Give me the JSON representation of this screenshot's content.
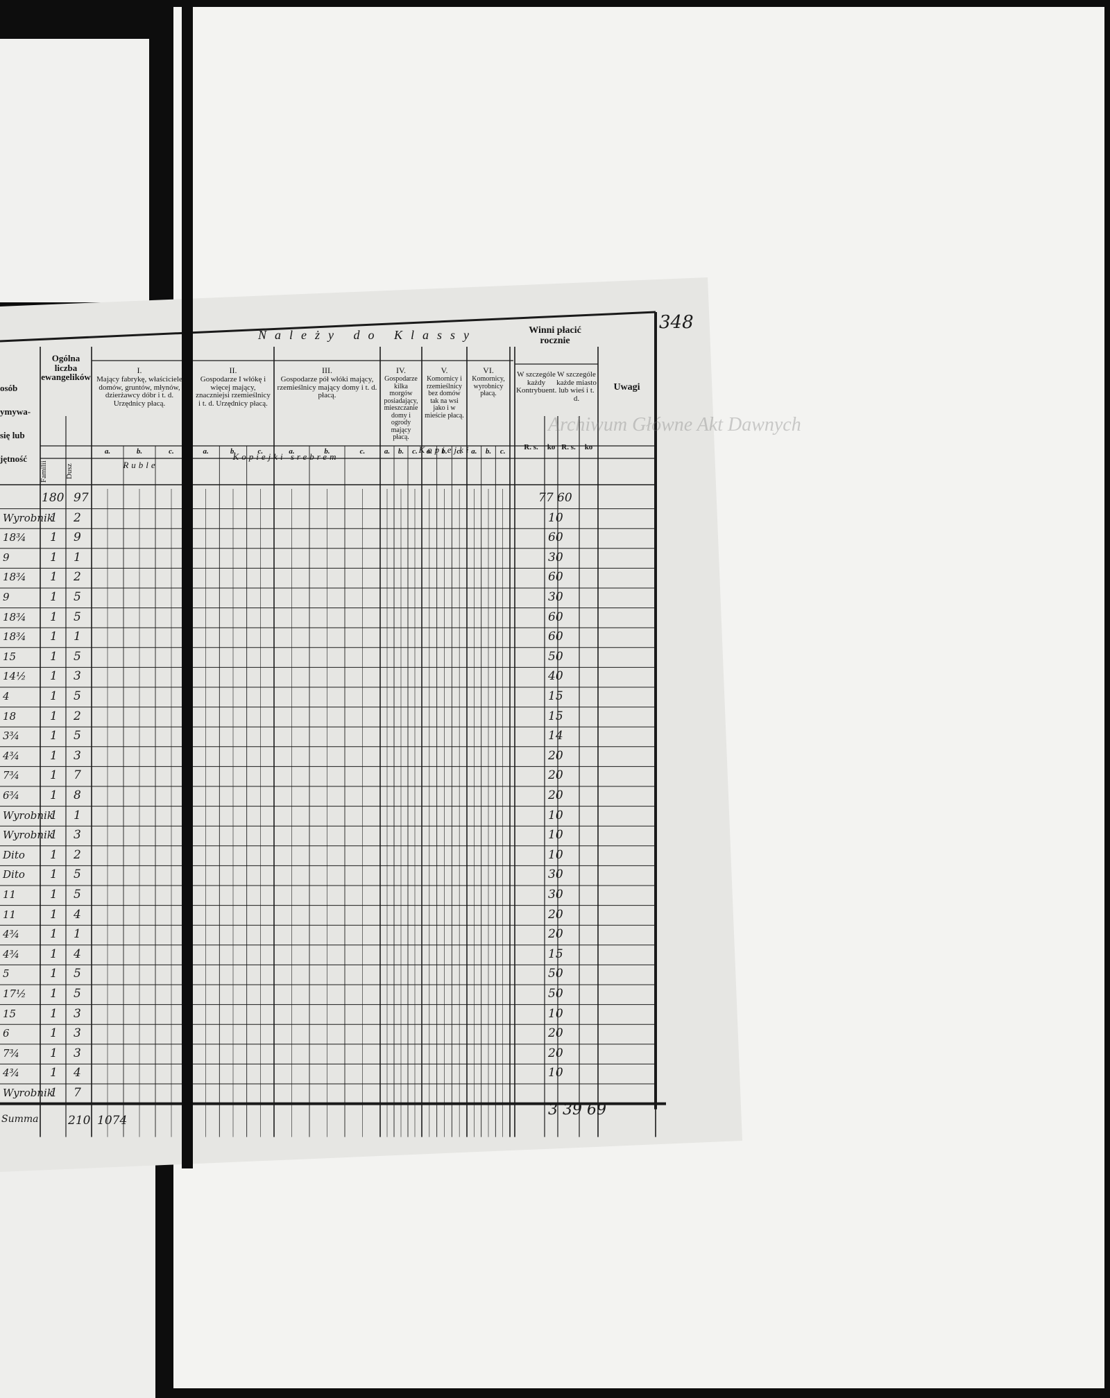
{
  "page_number": "348",
  "watermark": "Archiwum Główne Akt Dawnych",
  "left_fragments": [
    "osób",
    "ymywa-",
    "się lub",
    "jętność"
  ],
  "header": {
    "group_title": "Należy do Klassy",
    "ewang": "Ogólna liczba ewangelików",
    "familii": "Familii",
    "dusz": "Dusz",
    "classes": [
      {
        "num": "I.",
        "text": "Mający fabrykę, właściciele domów, gruntów, młynów, dzierżawcy dóbr i t. d. Urzędnicy płacą."
      },
      {
        "num": "II.",
        "text": "Gospodarze I włókę i więcej mający, znaczniejsi rzemieślnicy i t. d. Urzędnicy płacą."
      },
      {
        "num": "III.",
        "text": "Gospodarze pół włóki mający, rzemieślnicy mający domy i t. d. płacą."
      },
      {
        "num": "IV.",
        "text": "Gospodarze kilka morgów posiadający, mieszczanie domy i ogrody mający płacą."
      },
      {
        "num": "V.",
        "text": "Komornicy i rzemieślnicy bez domów tak na wsi jako i w mieście płacą."
      },
      {
        "num": "VI.",
        "text": "Komornicy, wyrobnicy płacą."
      }
    ],
    "sub": [
      "a.",
      "b.",
      "c."
    ],
    "winni": "Winni płacić rocznie",
    "winni_a": "W szczególe każdy Kontrybuent.",
    "winni_b": "W szczególe każde miasto lub wieś i t. d.",
    "uwagi": "Uwagi",
    "rs": "R. s.",
    "ko": "ko",
    "ruble": "Ruble",
    "kopiejki_srebrem": "Kopiejki srebrem",
    "kopiejki": "Kopiejki"
  },
  "rows": [
    {
      "familii": "180",
      "dusz": "97",
      "kop": "77 60"
    },
    {
      "note": "Wyrobnik",
      "familii": "1",
      "dusz": "2",
      "kop": "10"
    },
    {
      "note": "18¾",
      "familii": "1",
      "dusz": "9",
      "kop": "60"
    },
    {
      "note": "9",
      "familii": "1",
      "dusz": "1",
      "kop": "30"
    },
    {
      "note": "18¾",
      "familii": "1",
      "dusz": "2",
      "kop": "60"
    },
    {
      "note": "9",
      "familii": "1",
      "dusz": "5",
      "kop": "30"
    },
    {
      "note": "18¾",
      "familii": "1",
      "dusz": "5",
      "kop": "60"
    },
    {
      "note": "18¾",
      "familii": "1",
      "dusz": "1",
      "kop": "60"
    },
    {
      "note": "15",
      "familii": "1",
      "dusz": "5",
      "kop": "50"
    },
    {
      "note": "14½",
      "familii": "1",
      "dusz": "3",
      "kop": "40"
    },
    {
      "note": "4",
      "familii": "1",
      "dusz": "5",
      "kop": "15"
    },
    {
      "note": "18",
      "familii": "1",
      "dusz": "2",
      "kop": "15"
    },
    {
      "note": "3¾",
      "familii": "1",
      "dusz": "5",
      "kop": "14"
    },
    {
      "note": "4¾",
      "familii": "1",
      "dusz": "3",
      "kop": "20"
    },
    {
      "note": "7¾",
      "familii": "1",
      "dusz": "7",
      "kop": "20"
    },
    {
      "note": "6¾",
      "familii": "1",
      "dusz": "8",
      "kop": "20"
    },
    {
      "note": "Wyrobnik",
      "familii": "1",
      "dusz": "1",
      "kop": "10"
    },
    {
      "note": "Wyrobnik",
      "familii": "1",
      "dusz": "3",
      "kop": "10"
    },
    {
      "note": "Dito",
      "familii": "1",
      "dusz": "2",
      "kop": "10"
    },
    {
      "note": "Dito",
      "familii": "1",
      "dusz": "5",
      "kop": "30"
    },
    {
      "note": "11",
      "familii": "1",
      "dusz": "5",
      "kop": "30"
    },
    {
      "note": "11",
      "familii": "1",
      "dusz": "4",
      "kop": "20"
    },
    {
      "note": "4¾",
      "familii": "1",
      "dusz": "1",
      "kop": "20"
    },
    {
      "note": "4¾",
      "familii": "1",
      "dusz": "4",
      "kop": "15"
    },
    {
      "note": "5",
      "familii": "1",
      "dusz": "5",
      "kop": "50"
    },
    {
      "note": "17½",
      "familii": "1",
      "dusz": "5",
      "kop": "50"
    },
    {
      "note": "15",
      "familii": "1",
      "dusz": "3",
      "kop": "10"
    },
    {
      "note": "6",
      "familii": "1",
      "dusz": "3",
      "kop": "20"
    },
    {
      "note": "7¾",
      "familii": "1",
      "dusz": "3",
      "kop": "20"
    },
    {
      "note": "4¾",
      "familii": "1",
      "dusz": "4",
      "kop": "10"
    },
    {
      "note": "Wyrobnik",
      "familii": "1",
      "dusz": "7"
    }
  ],
  "total": {
    "note": "Summa",
    "familii": "210",
    "dusz": "1074",
    "amount": "3 39 69"
  }
}
